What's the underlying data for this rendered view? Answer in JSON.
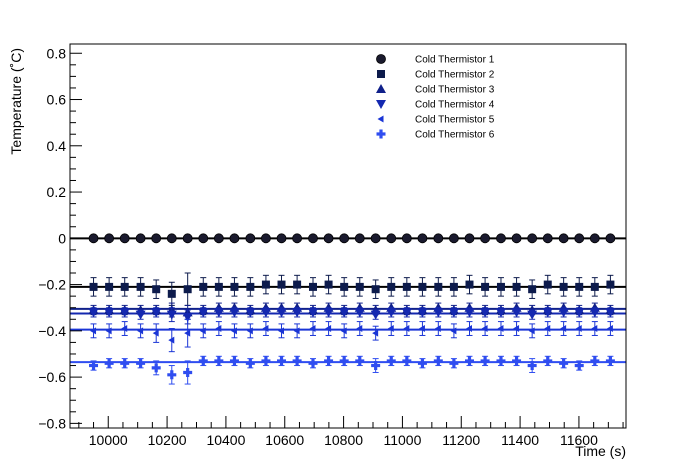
{
  "chart_data": {
    "type": "scatter",
    "xlabel": "Time (s)",
    "ylabel": "Temperature (˚C)",
    "xlim": [
      9870,
      11760
    ],
    "ylim": [
      -0.82,
      0.84
    ],
    "xticks": [
      10000,
      10200,
      10400,
      10600,
      10800,
      11000,
      11200,
      11400,
      11600
    ],
    "yticks": [
      -0.8,
      -0.6,
      -0.4,
      -0.2,
      0,
      0.2,
      0.4,
      0.6,
      0.8
    ],
    "ytick_labels": [
      "−0.8",
      "−0.6",
      "−0.4",
      "−0.2",
      "0",
      "0.2",
      "0.4",
      "0.6",
      "0.8"
    ],
    "grid": false,
    "legend_position": "top-center",
    "x": [
      9950,
      10003,
      10056,
      10110,
      10163,
      10216,
      10270,
      10323,
      10376,
      10429,
      10483,
      10536,
      10589,
      10642,
      10696,
      10749,
      10802,
      10855,
      10909,
      10962,
      11015,
      11068,
      11122,
      11175,
      11228,
      11281,
      11335,
      11388,
      11441,
      11494,
      11548,
      11601,
      11654,
      11707
    ],
    "series": [
      {
        "name": "Cold Thermistor 1",
        "marker": "circle",
        "color": "#1a1a2e",
        "fit": 0,
        "values": [
          0,
          0,
          0,
          0,
          0,
          0,
          0,
          0,
          0,
          0,
          0,
          0,
          0,
          0,
          0,
          0,
          0,
          0,
          0,
          0,
          0,
          0,
          0,
          0,
          0,
          0,
          0,
          0,
          0,
          0,
          0,
          0,
          0,
          0
        ],
        "errors": [
          0.01,
          0.01,
          0.01,
          0.01,
          0.01,
          0.01,
          0.01,
          0.01,
          0.01,
          0.01,
          0.01,
          0.01,
          0.01,
          0.01,
          0.01,
          0.01,
          0.01,
          0.01,
          0.01,
          0.01,
          0.01,
          0.01,
          0.01,
          0.01,
          0.01,
          0.01,
          0.01,
          0.01,
          0.01,
          0.01,
          0.01,
          0.01,
          0.01,
          0.01
        ]
      },
      {
        "name": "Cold Thermistor 2",
        "marker": "square",
        "color": "#0d1b4c",
        "fit": -0.21,
        "values": [
          -0.21,
          -0.21,
          -0.21,
          -0.21,
          -0.22,
          -0.24,
          -0.22,
          -0.21,
          -0.21,
          -0.21,
          -0.21,
          -0.2,
          -0.2,
          -0.2,
          -0.21,
          -0.2,
          -0.21,
          -0.21,
          -0.22,
          -0.21,
          -0.21,
          -0.21,
          -0.21,
          -0.21,
          -0.2,
          -0.21,
          -0.21,
          -0.21,
          -0.22,
          -0.2,
          -0.21,
          -0.21,
          -0.21,
          -0.2
        ],
        "errors": [
          0.04,
          0.04,
          0.04,
          0.04,
          0.04,
          0.05,
          0.07,
          0.04,
          0.04,
          0.04,
          0.04,
          0.04,
          0.04,
          0.04,
          0.04,
          0.04,
          0.04,
          0.04,
          0.04,
          0.04,
          0.04,
          0.04,
          0.04,
          0.04,
          0.04,
          0.04,
          0.04,
          0.04,
          0.04,
          0.04,
          0.04,
          0.04,
          0.04,
          0.04
        ]
      },
      {
        "name": "Cold Thermistor 3",
        "marker": "triangle-up",
        "color": "#10208a",
        "fit": -0.305,
        "values": [
          -0.31,
          -0.31,
          -0.31,
          -0.31,
          -0.31,
          -0.31,
          -0.32,
          -0.31,
          -0.3,
          -0.3,
          -0.31,
          -0.3,
          -0.3,
          -0.3,
          -0.31,
          -0.3,
          -0.31,
          -0.3,
          -0.31,
          -0.3,
          -0.31,
          -0.31,
          -0.3,
          -0.31,
          -0.3,
          -0.31,
          -0.31,
          -0.3,
          -0.31,
          -0.31,
          -0.3,
          -0.31,
          -0.3,
          -0.31
        ],
        "errors": [
          0.02,
          0.02,
          0.02,
          0.02,
          0.02,
          0.03,
          0.03,
          0.02,
          0.02,
          0.02,
          0.02,
          0.02,
          0.02,
          0.02,
          0.02,
          0.02,
          0.02,
          0.02,
          0.02,
          0.02,
          0.02,
          0.02,
          0.02,
          0.02,
          0.02,
          0.02,
          0.02,
          0.02,
          0.02,
          0.02,
          0.02,
          0.02,
          0.02,
          0.02
        ]
      },
      {
        "name": "Cold Thermistor 4",
        "marker": "triangle-down",
        "color": "#1428b0",
        "fit": -0.325,
        "values": [
          -0.32,
          -0.32,
          -0.32,
          -0.33,
          -0.32,
          -0.33,
          -0.34,
          -0.32,
          -0.32,
          -0.32,
          -0.32,
          -0.32,
          -0.32,
          -0.32,
          -0.32,
          -0.32,
          -0.32,
          -0.32,
          -0.33,
          -0.32,
          -0.32,
          -0.32,
          -0.32,
          -0.32,
          -0.32,
          -0.32,
          -0.32,
          -0.32,
          -0.33,
          -0.32,
          -0.32,
          -0.32,
          -0.32,
          -0.32
        ],
        "errors": [
          0.02,
          0.02,
          0.02,
          0.02,
          0.02,
          0.03,
          0.03,
          0.02,
          0.02,
          0.02,
          0.02,
          0.02,
          0.02,
          0.02,
          0.02,
          0.02,
          0.02,
          0.02,
          0.02,
          0.02,
          0.02,
          0.02,
          0.02,
          0.02,
          0.02,
          0.02,
          0.02,
          0.02,
          0.02,
          0.02,
          0.02,
          0.02,
          0.02,
          0.02
        ]
      },
      {
        "name": "Cold Thermistor 5",
        "marker": "triangle-left",
        "color": "#1a35d6",
        "fit": -0.395,
        "values": [
          -0.4,
          -0.4,
          -0.39,
          -0.4,
          -0.41,
          -0.44,
          -0.41,
          -0.4,
          -0.39,
          -0.4,
          -0.4,
          -0.39,
          -0.4,
          -0.4,
          -0.39,
          -0.39,
          -0.4,
          -0.39,
          -0.41,
          -0.39,
          -0.39,
          -0.39,
          -0.39,
          -0.4,
          -0.39,
          -0.39,
          -0.39,
          -0.39,
          -0.4,
          -0.39,
          -0.39,
          -0.39,
          -0.39,
          -0.39
        ],
        "errors": [
          0.03,
          0.03,
          0.03,
          0.03,
          0.04,
          0.05,
          0.06,
          0.03,
          0.03,
          0.03,
          0.03,
          0.03,
          0.03,
          0.03,
          0.03,
          0.03,
          0.03,
          0.03,
          0.03,
          0.03,
          0.03,
          0.03,
          0.03,
          0.03,
          0.03,
          0.03,
          0.03,
          0.03,
          0.03,
          0.03,
          0.03,
          0.03,
          0.03,
          0.03
        ]
      },
      {
        "name": "Cold Thermistor 6",
        "marker": "cross",
        "color": "#2f4df0",
        "fit": -0.535,
        "values": [
          -0.55,
          -0.54,
          -0.54,
          -0.54,
          -0.56,
          -0.59,
          -0.58,
          -0.53,
          -0.53,
          -0.53,
          -0.54,
          -0.53,
          -0.53,
          -0.53,
          -0.54,
          -0.53,
          -0.53,
          -0.53,
          -0.55,
          -0.53,
          -0.53,
          -0.54,
          -0.53,
          -0.54,
          -0.53,
          -0.53,
          -0.53,
          -0.53,
          -0.55,
          -0.53,
          -0.54,
          -0.55,
          -0.53,
          -0.53
        ],
        "errors": [
          0.02,
          0.02,
          0.02,
          0.02,
          0.03,
          0.04,
          0.05,
          0.02,
          0.02,
          0.02,
          0.02,
          0.02,
          0.02,
          0.02,
          0.02,
          0.02,
          0.02,
          0.02,
          0.03,
          0.02,
          0.02,
          0.02,
          0.02,
          0.02,
          0.02,
          0.02,
          0.02,
          0.02,
          0.03,
          0.02,
          0.02,
          0.02,
          0.02,
          0.02
        ]
      }
    ]
  }
}
